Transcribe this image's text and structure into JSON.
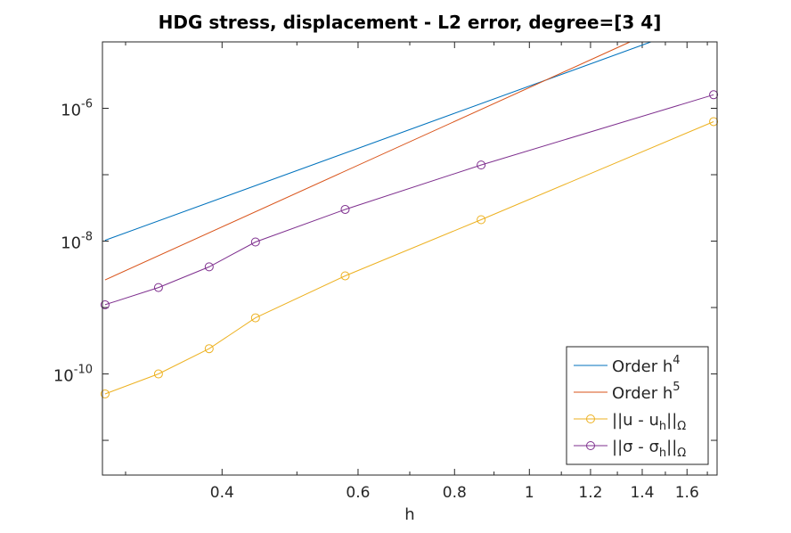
{
  "chart_data": {
    "type": "line",
    "title": "HDG stress, displacement - L2 error, degree=[3  4]",
    "xlabel": "h",
    "ylabel": "",
    "xscale": "log",
    "yscale": "log",
    "xlim": [
      0.28,
      1.75
    ],
    "ylim": [
      3e-12,
      1e-05
    ],
    "grid": false,
    "legend_position": "bottom-right",
    "x_ticks": [
      {
        "value": 0.4,
        "label": "0.4"
      },
      {
        "value": 0.6,
        "label": "0.6"
      },
      {
        "value": 0.8,
        "label": "0.8"
      },
      {
        "value": 1.0,
        "label": "1"
      },
      {
        "value": 1.2,
        "label": "1.2"
      },
      {
        "value": 1.4,
        "label": "1.4"
      },
      {
        "value": 1.6,
        "label": "1.6"
      }
    ],
    "y_ticks": [
      {
        "value": 1e-10,
        "base": "10",
        "exp": "-10"
      },
      {
        "value": 1e-08,
        "base": "10",
        "exp": "-8"
      },
      {
        "value": 1e-06,
        "base": "10",
        "exp": "-6"
      }
    ],
    "series": [
      {
        "name": "Order h^4",
        "legend_base": "Order h",
        "legend_sup": "4",
        "color": "#0072BD",
        "marker": "none",
        "points": [
          [
            0.2822,
            1.03e-08
          ],
          [
            1.437,
            1e-05
          ]
        ]
      },
      {
        "name": "Order h^5",
        "legend_base": "Order h",
        "legend_sup": "5",
        "color": "#D95319",
        "marker": "none",
        "points": [
          [
            0.2822,
            2.6e-09
          ],
          [
            1.35,
            1e-05
          ]
        ]
      },
      {
        "name": "||u - u_h||_Ω",
        "legend_base": "||u - u",
        "legend_sub1": "h",
        "legend_mid": "||",
        "legend_sub2": "Ω",
        "color": "#EDB120",
        "marker": "circle",
        "points": [
          [
            0.2822,
            5e-11
          ],
          [
            0.3309,
            1e-10
          ],
          [
            0.3849,
            2.4e-10
          ],
          [
            0.4419,
            7e-10
          ],
          [
            0.5774,
            3e-09
          ],
          [
            0.866,
            2.1e-08
          ],
          [
            1.732,
            6.3e-07
          ]
        ]
      },
      {
        "name": "||σ - σ_h||_Ω",
        "legend_base": "||σ - σ",
        "legend_sub1": "h",
        "legend_mid": "||",
        "legend_sub2": "Ω",
        "color": "#7E2F8E",
        "marker": "circle",
        "points": [
          [
            0.2822,
            1.1e-09
          ],
          [
            0.3309,
            2e-09
          ],
          [
            0.3849,
            4.1e-09
          ],
          [
            0.4419,
            9.7e-09
          ],
          [
            0.5774,
            3e-08
          ],
          [
            0.866,
            1.4e-07
          ],
          [
            1.732,
            1.6e-06
          ]
        ]
      }
    ]
  }
}
